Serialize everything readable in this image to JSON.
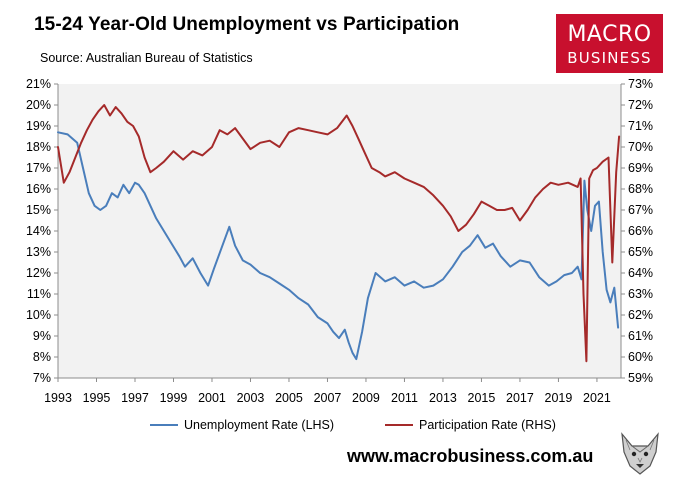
{
  "title": "15-24 Year-Old Unemployment vs Participation",
  "source": "Source: Australian Bureau of Statistics",
  "logo": {
    "line1": "MACRO",
    "line2": "BUSINESS",
    "color": "#c8102e"
  },
  "url": "www.macrobusiness.com.au",
  "colors": {
    "unemployment": "#4a7ebb",
    "participation": "#a52a2a",
    "plot_bg": "#f2f2f2"
  },
  "chart_data": {
    "type": "line",
    "title": "15-24 Year-Old Unemployment vs Participation",
    "x_ticks": [
      "1993",
      "1995",
      "1997",
      "1999",
      "2001",
      "2003",
      "2005",
      "2007",
      "2009",
      "2011",
      "2013",
      "2015",
      "2017",
      "2019",
      "2021"
    ],
    "xlim": [
      1993,
      2022.25
    ],
    "y_left": {
      "lim": [
        7,
        21
      ],
      "ticks": [
        "7%",
        "8%",
        "9%",
        "10%",
        "11%",
        "12%",
        "13%",
        "14%",
        "15%",
        "16%",
        "17%",
        "18%",
        "19%",
        "20%",
        "21%"
      ]
    },
    "y_right": {
      "lim": [
        59,
        73
      ],
      "ticks": [
        "59%",
        "60%",
        "61%",
        "62%",
        "63%",
        "64%",
        "65%",
        "66%",
        "67%",
        "68%",
        "69%",
        "70%",
        "71%",
        "72%",
        "73%"
      ]
    },
    "series": [
      {
        "name": "Unemployment Rate (LHS)",
        "axis": "left",
        "x": [
          1993.0,
          1993.5,
          1994.0,
          1994.3,
          1994.6,
          1994.9,
          1995.2,
          1995.5,
          1995.8,
          1996.1,
          1996.4,
          1996.7,
          1997.0,
          1997.2,
          1997.5,
          1997.8,
          1998.1,
          1998.5,
          1998.9,
          1999.3,
          1999.6,
          2000.0,
          2000.4,
          2000.8,
          2001.1,
          2001.5,
          2001.9,
          2002.2,
          2002.6,
          2003.0,
          2003.5,
          2004.0,
          2004.5,
          2005.0,
          2005.5,
          2006.0,
          2006.5,
          2007.0,
          2007.3,
          2007.6,
          2007.9,
          2008.1,
          2008.3,
          2008.5,
          2008.8,
          2009.1,
          2009.5,
          2010.0,
          2010.5,
          2011.0,
          2011.5,
          2012.0,
          2012.5,
          2013.0,
          2013.5,
          2014.0,
          2014.4,
          2014.8,
          2015.2,
          2015.6,
          2016.0,
          2016.5,
          2017.0,
          2017.5,
          2018.0,
          2018.5,
          2018.9,
          2019.3,
          2019.7,
          2020.0,
          2020.2,
          2020.35,
          2020.5,
          2020.7,
          2020.9,
          2021.1,
          2021.3,
          2021.5,
          2021.7,
          2021.9,
          2022.1
        ],
        "values": [
          18.7,
          18.6,
          18.2,
          17.0,
          15.8,
          15.2,
          15.0,
          15.2,
          15.8,
          15.6,
          16.2,
          15.8,
          16.3,
          16.2,
          15.8,
          15.2,
          14.6,
          14.0,
          13.4,
          12.8,
          12.3,
          12.7,
          12.0,
          11.4,
          12.2,
          13.2,
          14.2,
          13.3,
          12.6,
          12.4,
          12.0,
          11.8,
          11.5,
          11.2,
          10.8,
          10.5,
          9.9,
          9.6,
          9.2,
          8.9,
          9.3,
          8.7,
          8.2,
          7.9,
          9.2,
          10.8,
          12.0,
          11.6,
          11.8,
          11.4,
          11.6,
          11.3,
          11.4,
          11.7,
          12.3,
          13.0,
          13.3,
          13.8,
          13.2,
          13.4,
          12.8,
          12.3,
          12.6,
          12.5,
          11.8,
          11.4,
          11.6,
          11.9,
          12.0,
          12.3,
          11.7,
          16.4,
          15.0,
          14.0,
          15.2,
          15.4,
          13.0,
          11.2,
          10.6,
          11.3,
          9.4
        ]
      },
      {
        "name": "Participation Rate (RHS)",
        "axis": "right",
        "x": [
          1993.0,
          1993.3,
          1993.6,
          1993.9,
          1994.2,
          1994.5,
          1994.8,
          1995.1,
          1995.4,
          1995.7,
          1996.0,
          1996.3,
          1996.6,
          1996.9,
          1997.2,
          1997.5,
          1997.8,
          1998.1,
          1998.5,
          1999.0,
          1999.5,
          2000.0,
          2000.5,
          2001.0,
          2001.4,
          2001.8,
          2002.2,
          2002.6,
          2003.0,
          2003.5,
          2004.0,
          2004.5,
          2005.0,
          2005.5,
          2006.0,
          2006.5,
          2007.0,
          2007.5,
          2008.0,
          2008.3,
          2008.6,
          2008.9,
          2009.3,
          2009.7,
          2010.0,
          2010.5,
          2011.0,
          2011.5,
          2012.0,
          2012.5,
          2013.0,
          2013.4,
          2013.8,
          2014.2,
          2014.6,
          2015.0,
          2015.4,
          2015.8,
          2016.2,
          2016.6,
          2017.0,
          2017.4,
          2017.8,
          2018.2,
          2018.6,
          2019.0,
          2019.5,
          2020.0,
          2020.15,
          2020.3,
          2020.45,
          2020.6,
          2020.8,
          2021.0,
          2021.3,
          2021.6,
          2021.8,
          2022.0,
          2022.15
        ],
        "values": [
          70.0,
          68.3,
          68.8,
          69.5,
          70.2,
          70.8,
          71.3,
          71.7,
          72.0,
          71.5,
          71.9,
          71.6,
          71.2,
          71.0,
          70.5,
          69.5,
          68.8,
          69.0,
          69.3,
          69.8,
          69.4,
          69.8,
          69.6,
          70.0,
          70.8,
          70.6,
          70.9,
          70.4,
          69.9,
          70.2,
          70.3,
          70.0,
          70.7,
          70.9,
          70.8,
          70.7,
          70.6,
          70.9,
          71.5,
          71.0,
          70.4,
          69.8,
          69.0,
          68.8,
          68.6,
          68.8,
          68.5,
          68.3,
          68.1,
          67.7,
          67.2,
          66.7,
          66.0,
          66.3,
          66.8,
          67.4,
          67.2,
          67.0,
          67.0,
          67.1,
          66.5,
          67.0,
          67.6,
          68.0,
          68.3,
          68.2,
          68.3,
          68.1,
          68.5,
          63.0,
          59.8,
          68.5,
          68.9,
          69.0,
          69.3,
          69.5,
          64.5,
          68.8,
          70.5
        ]
      }
    ]
  }
}
